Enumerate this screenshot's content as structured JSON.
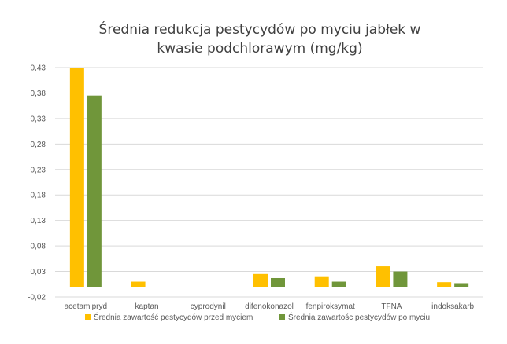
{
  "chart_data": {
    "type": "bar",
    "title": "Średnia redukcja pestycydów po myciu jabłek w kwasie podchlorawym (mg/kg)",
    "categories": [
      "acetamipryd",
      "kaptan",
      "cyprodynil",
      "difenokonazol",
      "fenpiroksymat",
      "TFNA",
      "indoksakarb"
    ],
    "series": [
      {
        "name": "Średnia zawartość pestycydów przed myciem",
        "color": "#FFC000",
        "values": [
          0.43,
          0.01,
          0.0,
          0.025,
          0.019,
          0.04,
          0.009
        ]
      },
      {
        "name": "Średnia zawartośc pestycydów po myciu",
        "color": "#70963A",
        "values": [
          0.375,
          0.0,
          0.0,
          0.017,
          0.01,
          0.03,
          0.007
        ]
      }
    ],
    "yticks": [
      "-0,02",
      "0,03",
      "0,08",
      "0,13",
      "0,18",
      "0,23",
      "0,28",
      "0,33",
      "0,38",
      "0,43"
    ],
    "ylim": [
      -0.02,
      0.43
    ],
    "grid": true,
    "legend_position": "bottom"
  }
}
